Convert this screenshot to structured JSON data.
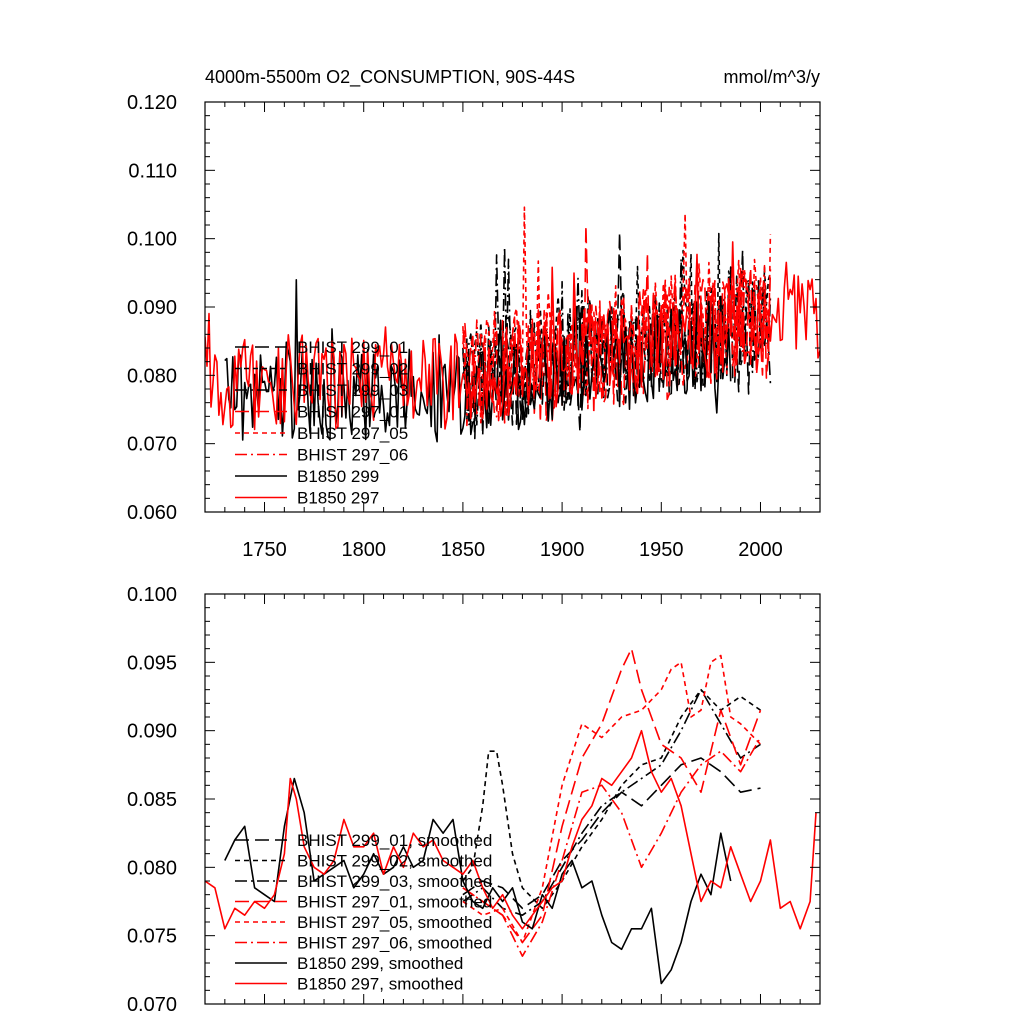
{
  "chart_data": [
    {
      "type": "line",
      "title": "4000m-5500m O2_CONSUMPTION, 90S-44S",
      "units": "mmol/m^3/y",
      "xlabel": "",
      "ylabel": "",
      "xlim": [
        1720,
        2030
      ],
      "ylim": [
        0.06,
        0.12
      ],
      "xticks": [
        1750,
        1800,
        1850,
        1900,
        1950,
        2000
      ],
      "xtick_labels": [
        "1750",
        "1800",
        "1850",
        "1900",
        "1950",
        "2000"
      ],
      "yticks": [
        0.06,
        0.07,
        0.08,
        0.09,
        0.1,
        0.11,
        0.12
      ],
      "ytick_labels": [
        "0.060",
        "0.070",
        "0.080",
        "0.090",
        "0.100",
        "0.110",
        "0.120"
      ],
      "legend_position": "lower-left",
      "series": [
        {
          "name": "BHIST 299_01",
          "color": "#000000",
          "dash": "long-dash",
          "x_start": 1850,
          "x_end": 2005,
          "base": 0.077,
          "amp": 0.0075
        },
        {
          "name": "BHIST 299_02",
          "color": "#000000",
          "dash": "short-dash",
          "x_start": 1850,
          "x_end": 2005,
          "base": 0.08,
          "amp": 0.008
        },
        {
          "name": "BHIST 299_03",
          "color": "#000000",
          "dash": "dash-dot",
          "x_start": 1850,
          "x_end": 2005,
          "base": 0.079,
          "amp": 0.0075
        },
        {
          "name": "BHIST 297_01",
          "color": "#ff0000",
          "dash": "long-dash",
          "x_start": 1850,
          "x_end": 2005,
          "base": 0.079,
          "amp": 0.0085
        },
        {
          "name": "BHIST 297_05",
          "color": "#ff0000",
          "dash": "short-dash",
          "x_start": 1850,
          "x_end": 2005,
          "base": 0.081,
          "amp": 0.0085
        },
        {
          "name": "BHIST 297_06",
          "color": "#ff0000",
          "dash": "dash-dot",
          "x_start": 1850,
          "x_end": 2005,
          "base": 0.08,
          "amp": 0.008
        },
        {
          "name": "B1850 299",
          "color": "#000000",
          "dash": "solid",
          "x_start": 1730,
          "x_end": 1985,
          "base": 0.077,
          "amp": 0.007
        },
        {
          "name": "B1850 297",
          "color": "#ff0000",
          "dash": "solid",
          "x_start": 1720,
          "x_end": 2030,
          "base": 0.079,
          "amp": 0.007
        }
      ]
    },
    {
      "type": "line",
      "title": "",
      "xlabel": "",
      "ylabel": "",
      "xlim": [
        1720,
        2030
      ],
      "ylim": [
        0.07,
        0.1
      ],
      "xticks": [
        1750,
        1800,
        1850,
        1900,
        1950,
        2000
      ],
      "xtick_labels": [],
      "yticks": [
        0.07,
        0.075,
        0.08,
        0.085,
        0.09,
        0.095,
        0.1
      ],
      "ytick_labels": [
        "0.070",
        "0.075",
        "0.080",
        "0.085",
        "0.090",
        "0.095",
        "0.100"
      ],
      "legend_position": "lower-left",
      "series": [
        {
          "name": "BHIST 299_01, smoothed",
          "color": "#000000",
          "dash": "long-dash",
          "x": [
            1850,
            1860,
            1870,
            1880,
            1890,
            1900,
            1910,
            1920,
            1930,
            1940,
            1950,
            1960,
            1970,
            1980,
            1990,
            2000
          ],
          "y": [
            0.078,
            0.079,
            0.0785,
            0.077,
            0.078,
            0.0805,
            0.082,
            0.084,
            0.0855,
            0.0845,
            0.086,
            0.0875,
            0.088,
            0.087,
            0.0855,
            0.0858
          ]
        },
        {
          "name": "BHIST 299_02, smoothed",
          "color": "#000000",
          "dash": "short-dash",
          "x": [
            1850,
            1855,
            1860,
            1863,
            1867,
            1870,
            1875,
            1880,
            1890,
            1900,
            1910,
            1920,
            1930,
            1940,
            1950,
            1960,
            1970,
            1980,
            1990,
            2000
          ],
          "y": [
            0.079,
            0.08,
            0.0845,
            0.0885,
            0.0885,
            0.086,
            0.081,
            0.0785,
            0.077,
            0.079,
            0.0815,
            0.0835,
            0.086,
            0.0875,
            0.088,
            0.091,
            0.093,
            0.0915,
            0.0925,
            0.0915
          ]
        },
        {
          "name": "BHIST 299_03, smoothed",
          "color": "#000000",
          "dash": "dash-dot",
          "x": [
            1850,
            1860,
            1870,
            1880,
            1890,
            1900,
            1910,
            1920,
            1930,
            1940,
            1950,
            1960,
            1970,
            1980,
            1990,
            2000
          ],
          "y": [
            0.0775,
            0.0785,
            0.077,
            0.0765,
            0.0775,
            0.08,
            0.0825,
            0.0845,
            0.0855,
            0.0865,
            0.0875,
            0.09,
            0.093,
            0.0905,
            0.088,
            0.089
          ]
        },
        {
          "name": "BHIST 297_01, smoothed",
          "color": "#ff0000",
          "dash": "long-dash",
          "x": [
            1850,
            1860,
            1870,
            1880,
            1890,
            1900,
            1910,
            1920,
            1930,
            1935,
            1940,
            1950,
            1960,
            1970,
            1980,
            1990,
            2000
          ],
          "y": [
            0.0785,
            0.0775,
            0.0765,
            0.0745,
            0.0765,
            0.083,
            0.088,
            0.0905,
            0.0945,
            0.096,
            0.093,
            0.089,
            0.088,
            0.0855,
            0.0915,
            0.0875,
            0.0915
          ]
        },
        {
          "name": "BHIST 297_05, smoothed",
          "color": "#ff0000",
          "dash": "short-dash",
          "x": [
            1850,
            1860,
            1870,
            1880,
            1890,
            1900,
            1910,
            1920,
            1930,
            1940,
            1950,
            1955,
            1960,
            1965,
            1970,
            1975,
            1980,
            1985,
            1990,
            2000
          ],
          "y": [
            0.0775,
            0.0765,
            0.077,
            0.0745,
            0.0785,
            0.086,
            0.0905,
            0.0895,
            0.091,
            0.0915,
            0.093,
            0.0945,
            0.095,
            0.091,
            0.0915,
            0.095,
            0.0955,
            0.091,
            0.0905,
            0.089
          ]
        },
        {
          "name": "BHIST 297_06, smoothed",
          "color": "#ff0000",
          "dash": "dash-dot",
          "x": [
            1850,
            1860,
            1870,
            1880,
            1890,
            1900,
            1910,
            1920,
            1930,
            1940,
            1950,
            1960,
            1970,
            1980,
            1990,
            2000
          ],
          "y": [
            0.0785,
            0.0775,
            0.0765,
            0.0735,
            0.076,
            0.0805,
            0.0855,
            0.086,
            0.084,
            0.08,
            0.0825,
            0.0855,
            0.0875,
            0.0885,
            0.087,
            0.0895
          ]
        },
        {
          "name": "B1850 299, smoothed",
          "color": "#000000",
          "dash": "solid",
          "x": [
            1730,
            1735,
            1740,
            1745,
            1750,
            1755,
            1760,
            1765,
            1770,
            1775,
            1780,
            1785,
            1790,
            1795,
            1800,
            1805,
            1810,
            1815,
            1820,
            1825,
            1830,
            1835,
            1840,
            1845,
            1850,
            1855,
            1860,
            1865,
            1870,
            1875,
            1880,
            1885,
            1890,
            1895,
            1900,
            1905,
            1910,
            1915,
            1920,
            1925,
            1930,
            1935,
            1940,
            1945,
            1950,
            1955,
            1960,
            1965,
            1970,
            1975,
            1980,
            1985
          ],
          "y": [
            0.0805,
            0.082,
            0.083,
            0.0785,
            0.078,
            0.0775,
            0.083,
            0.0865,
            0.084,
            0.079,
            0.0795,
            0.08,
            0.0805,
            0.0785,
            0.0795,
            0.081,
            0.0795,
            0.08,
            0.0815,
            0.08,
            0.0805,
            0.0835,
            0.0825,
            0.0835,
            0.079,
            0.0775,
            0.077,
            0.0785,
            0.0775,
            0.0785,
            0.076,
            0.0755,
            0.078,
            0.077,
            0.0795,
            0.0805,
            0.0785,
            0.079,
            0.0765,
            0.0745,
            0.074,
            0.0755,
            0.0755,
            0.077,
            0.0715,
            0.0725,
            0.0745,
            0.0775,
            0.0795,
            0.078,
            0.0825,
            0.079
          ]
        },
        {
          "name": "B1850 297, smoothed",
          "color": "#ff0000",
          "dash": "solid",
          "x": [
            1720,
            1725,
            1730,
            1735,
            1740,
            1745,
            1750,
            1755,
            1760,
            1763,
            1766,
            1770,
            1775,
            1780,
            1785,
            1790,
            1795,
            1800,
            1805,
            1810,
            1815,
            1820,
            1825,
            1830,
            1835,
            1840,
            1845,
            1850,
            1855,
            1860,
            1865,
            1870,
            1875,
            1880,
            1885,
            1890,
            1895,
            1900,
            1905,
            1910,
            1915,
            1920,
            1925,
            1930,
            1935,
            1940,
            1945,
            1950,
            1955,
            1960,
            1965,
            1970,
            1975,
            1980,
            1985,
            1990,
            1995,
            2000,
            2005,
            2010,
            2015,
            2020,
            2025,
            2028
          ],
          "y": [
            0.079,
            0.0785,
            0.0755,
            0.077,
            0.0765,
            0.0775,
            0.077,
            0.078,
            0.081,
            0.0865,
            0.085,
            0.0815,
            0.08,
            0.0795,
            0.0805,
            0.0835,
            0.0815,
            0.0815,
            0.0825,
            0.0795,
            0.0815,
            0.08,
            0.0825,
            0.0815,
            0.082,
            0.0805,
            0.08,
            0.0795,
            0.0805,
            0.0785,
            0.077,
            0.078,
            0.0765,
            0.0755,
            0.0765,
            0.0775,
            0.0785,
            0.079,
            0.0815,
            0.0835,
            0.0845,
            0.0865,
            0.086,
            0.087,
            0.088,
            0.09,
            0.087,
            0.0855,
            0.0865,
            0.0845,
            0.081,
            0.0775,
            0.079,
            0.0785,
            0.0815,
            0.0795,
            0.0775,
            0.079,
            0.082,
            0.077,
            0.0775,
            0.0755,
            0.0775,
            0.084
          ]
        }
      ]
    }
  ]
}
